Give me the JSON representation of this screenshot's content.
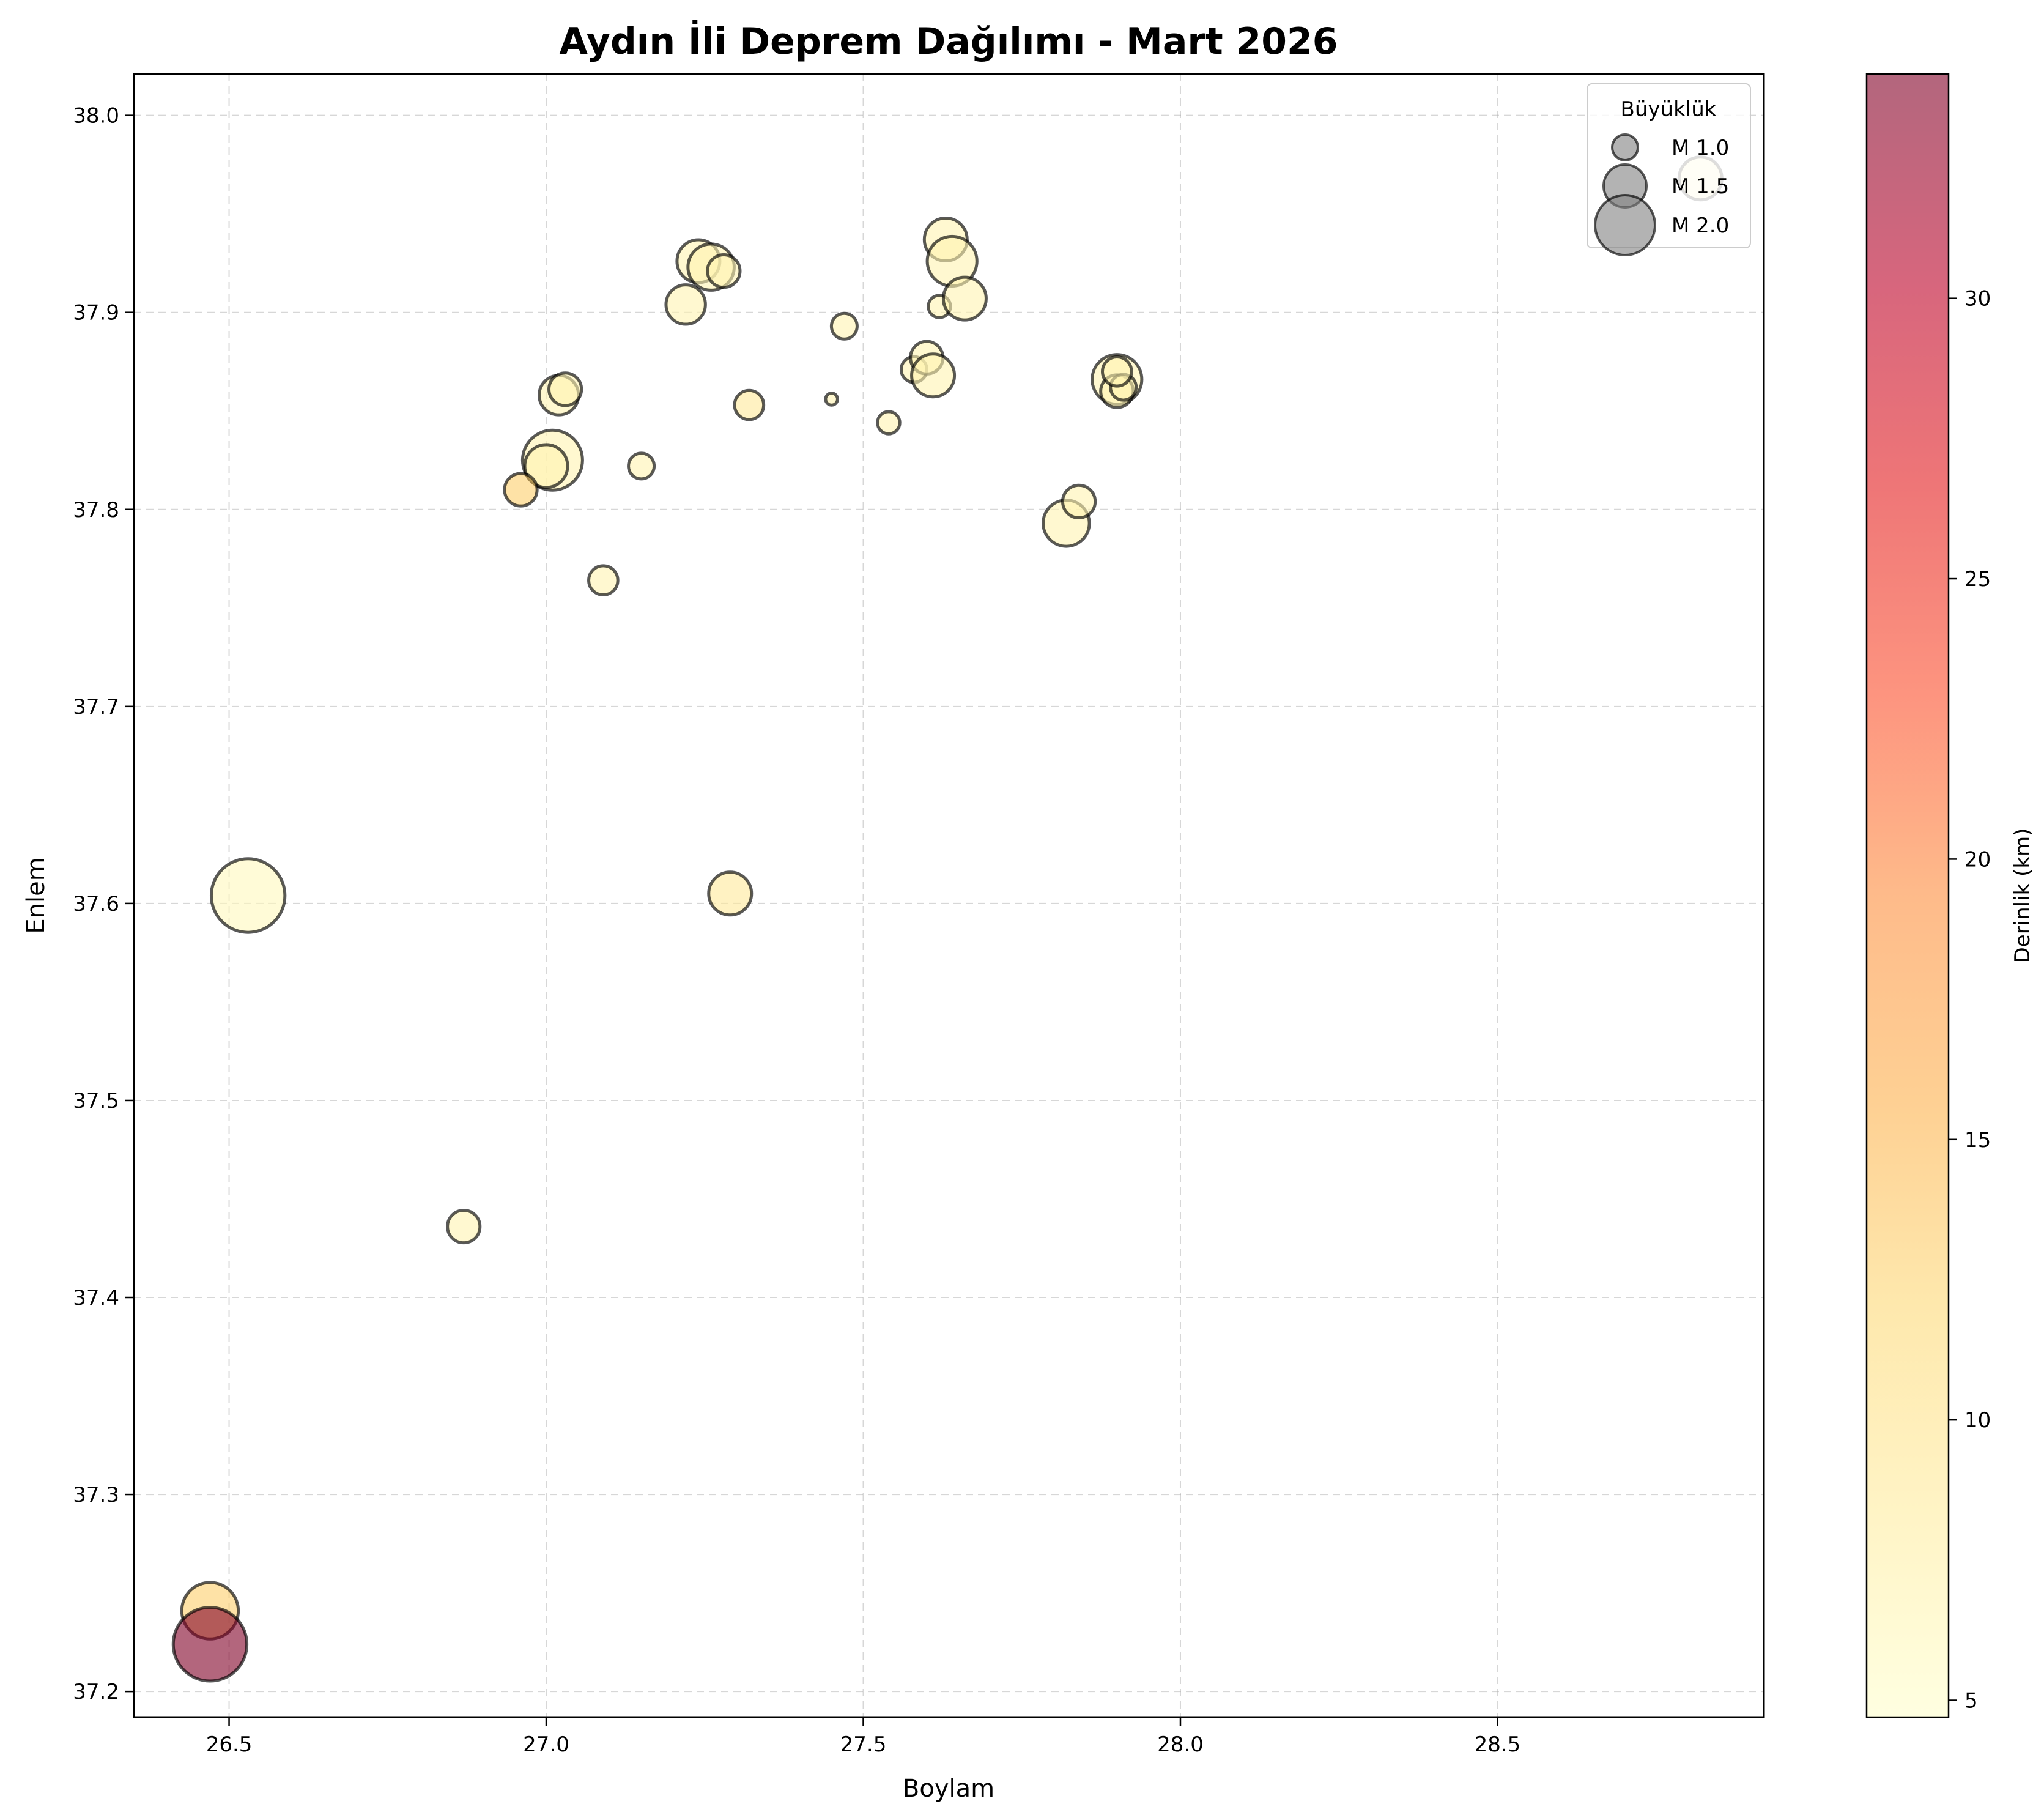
{
  "chart_data": {
    "type": "scatter",
    "title": "Aydın İli Deprem Dağılımı - Mart 2026",
    "xlabel": "Boylam",
    "ylabel": "Enlem",
    "xlim": [
      26.35,
      28.92
    ],
    "ylim": [
      37.187,
      38.021
    ],
    "xticks": [
      "26.5",
      "27.0",
      "27.5",
      "28.0",
      "28.5"
    ],
    "yticks": [
      "37.2",
      "37.3",
      "37.4",
      "37.5",
      "37.6",
      "37.7",
      "37.8",
      "37.9",
      "38.0"
    ],
    "grid": true,
    "colorbar": {
      "label": "Derinlik (km)",
      "range": [
        4.7,
        34
      ],
      "ticks": [
        "5",
        "10",
        "15",
        "20",
        "25",
        "30"
      ],
      "colormap": "YlOrRd",
      "alpha": 0.6
    },
    "legend": {
      "title": "Büyüklük",
      "position": "top-right",
      "entries": [
        {
          "label": "M 1.0",
          "magnitude": 1.0
        },
        {
          "label": "M 1.5",
          "magnitude": 1.5
        },
        {
          "label": "M 2.0",
          "magnitude": 2.0
        }
      ]
    },
    "points": [
      {
        "lon": 26.47,
        "lat": 37.224,
        "mag": 2.4,
        "depth": 34
      },
      {
        "lon": 26.47,
        "lat": 37.241,
        "mag": 1.9,
        "depth": 13
      },
      {
        "lon": 26.53,
        "lat": 37.604,
        "mag": 2.4,
        "depth": 6
      },
      {
        "lon": 26.87,
        "lat": 37.436,
        "mag": 1.2,
        "depth": 7
      },
      {
        "lon": 26.96,
        "lat": 37.81,
        "mag": 1.2,
        "depth": 13
      },
      {
        "lon": 27.01,
        "lat": 37.825,
        "mag": 2.0,
        "depth": 7
      },
      {
        "lon": 27.0,
        "lat": 37.822,
        "mag": 1.5,
        "depth": 7
      },
      {
        "lon": 27.02,
        "lat": 37.858,
        "mag": 1.4,
        "depth": 7
      },
      {
        "lon": 27.03,
        "lat": 37.861,
        "mag": 1.2,
        "depth": 7
      },
      {
        "lon": 27.09,
        "lat": 37.764,
        "mag": 1.1,
        "depth": 7
      },
      {
        "lon": 27.15,
        "lat": 37.822,
        "mag": 1.0,
        "depth": 7
      },
      {
        "lon": 27.22,
        "lat": 37.904,
        "mag": 1.4,
        "depth": 7
      },
      {
        "lon": 27.24,
        "lat": 37.926,
        "mag": 1.5,
        "depth": 7
      },
      {
        "lon": 27.26,
        "lat": 37.923,
        "mag": 1.6,
        "depth": 7
      },
      {
        "lon": 27.28,
        "lat": 37.921,
        "mag": 1.2,
        "depth": 7
      },
      {
        "lon": 27.29,
        "lat": 37.605,
        "mag": 1.5,
        "depth": 9
      },
      {
        "lon": 27.32,
        "lat": 37.853,
        "mag": 1.1,
        "depth": 9
      },
      {
        "lon": 27.45,
        "lat": 37.856,
        "mag": 0.6,
        "depth": 7
      },
      {
        "lon": 27.47,
        "lat": 37.893,
        "mag": 1.0,
        "depth": 7
      },
      {
        "lon": 27.54,
        "lat": 37.844,
        "mag": 0.9,
        "depth": 7
      },
      {
        "lon": 27.58,
        "lat": 37.871,
        "mag": 1.0,
        "depth": 7
      },
      {
        "lon": 27.6,
        "lat": 37.877,
        "mag": 1.2,
        "depth": 7
      },
      {
        "lon": 27.61,
        "lat": 37.868,
        "mag": 1.5,
        "depth": 7
      },
      {
        "lon": 27.62,
        "lat": 37.903,
        "mag": 0.9,
        "depth": 7
      },
      {
        "lon": 27.63,
        "lat": 37.937,
        "mag": 1.5,
        "depth": 7
      },
      {
        "lon": 27.64,
        "lat": 37.926,
        "mag": 1.7,
        "depth": 7
      },
      {
        "lon": 27.66,
        "lat": 37.907,
        "mag": 1.5,
        "depth": 7
      },
      {
        "lon": 27.82,
        "lat": 37.793,
        "mag": 1.6,
        "depth": 7
      },
      {
        "lon": 27.84,
        "lat": 37.804,
        "mag": 1.2,
        "depth": 7
      },
      {
        "lon": 27.9,
        "lat": 37.866,
        "mag": 1.7,
        "depth": 7
      },
      {
        "lon": 27.9,
        "lat": 37.86,
        "mag": 1.2,
        "depth": 7
      },
      {
        "lon": 27.91,
        "lat": 37.862,
        "mag": 1.0,
        "depth": 7
      },
      {
        "lon": 27.9,
        "lat": 37.87,
        "mag": 1.1,
        "depth": 7
      },
      {
        "lon": 28.82,
        "lat": 37.968,
        "mag": 1.5,
        "depth": 7
      }
    ]
  }
}
